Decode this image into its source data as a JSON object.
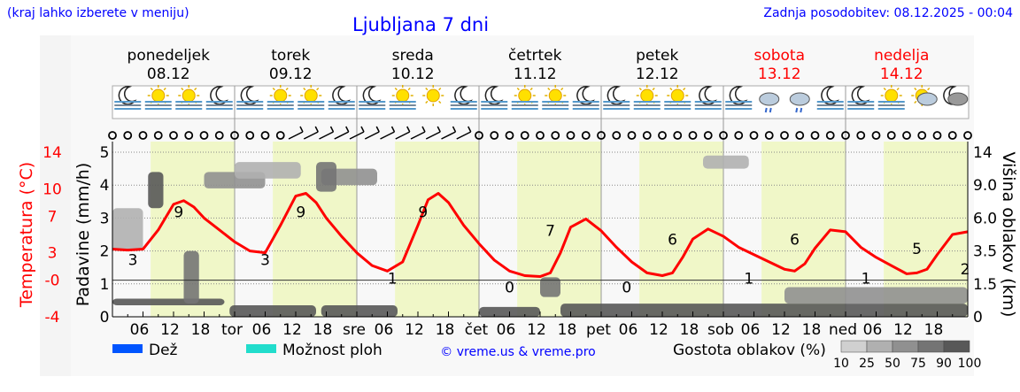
{
  "header": {
    "note": "(kraj lahko izberete v meniju)",
    "title": "Ljubljana 7 dni",
    "updated": "Zadnja posodobitev: 08.12.2025 - 00:04"
  },
  "colors": {
    "temperature": "#ff0000",
    "rain": "#0055ff",
    "shower": "#22ddcc",
    "day_band": "#f0f7c8",
    "link": "#0000ff",
    "weekend": "#ff0000"
  },
  "days": [
    {
      "name": "ponedeljek",
      "date": "08.12",
      "weekend": false
    },
    {
      "name": "torek",
      "date": "09.12",
      "weekend": false
    },
    {
      "name": "sreda",
      "date": "10.12",
      "weekend": false
    },
    {
      "name": "četrtek",
      "date": "11.12",
      "weekend": false
    },
    {
      "name": "petek",
      "date": "12.12",
      "weekend": false
    },
    {
      "name": "sobota",
      "date": "13.12",
      "weekend": true
    },
    {
      "name": "nedelja",
      "date": "14.12",
      "weekend": true
    }
  ],
  "icons": [
    "moon-fog",
    "sun-fog",
    "sun-fog",
    "moon-fog",
    "moon-fog",
    "sun-fog",
    "sun-fog",
    "moon-fog",
    "moon-fog",
    "sun-fog",
    "sun",
    "moon-fog",
    "moon-fog",
    "sun-fog",
    "sun-fog",
    "moon-fog",
    "moon-fog",
    "sun-fog",
    "sun-fog",
    "moon-fog",
    "moon-fog",
    "cloud-rain",
    "cloud-rain",
    "moon-fog",
    "moon-fog",
    "sun-fog",
    "sun-cloud",
    "moon-cloud"
  ],
  "chart_data": {
    "type": "line",
    "x_tick_labels": [
      "06",
      "12",
      "18",
      "tor",
      "06",
      "12",
      "18",
      "sre",
      "06",
      "12",
      "18",
      "čet",
      "06",
      "12",
      "18",
      "pet",
      "06",
      "12",
      "18",
      "sob",
      "06",
      "12",
      "18",
      "ned",
      "06",
      "12",
      "18"
    ],
    "left_axis_precip": {
      "label": "Padavine (mm/h)",
      "ticks": [
        "0",
        "1",
        "2",
        "3",
        "4",
        "5"
      ],
      "range": [
        0,
        5
      ]
    },
    "left_axis_temp": {
      "label": "Temperatura (°C)",
      "ticks": [
        "-4",
        "-0",
        "3",
        "7",
        "10",
        "14"
      ],
      "range": [
        -4,
        14
      ]
    },
    "right_axis": {
      "label": "Višina oblakov (km)",
      "ticks": [
        "0",
        "1.5",
        "3.5",
        "6.0",
        "9.0",
        "14"
      ]
    },
    "temperature": {
      "hours": [
        0,
        3,
        6,
        9,
        12,
        14,
        16,
        18,
        21,
        24,
        27,
        30,
        33,
        36,
        38,
        40,
        42,
        45,
        48,
        51,
        54,
        57,
        60,
        62,
        64,
        66,
        69,
        72,
        75,
        78,
        81,
        84,
        86,
        88,
        90,
        93,
        96,
        99,
        102,
        105,
        108,
        110,
        112,
        114,
        117,
        120,
        123,
        126,
        129,
        132,
        134,
        136,
        138,
        141,
        144,
        147,
        150,
        153,
        156,
        158,
        160,
        162,
        165,
        168
      ],
      "values": [
        3.4,
        3.3,
        3.4,
        5.5,
        8.3,
        8.7,
        8.0,
        6.8,
        5.5,
        4.2,
        3.2,
        3.0,
        6.0,
        9.2,
        9.5,
        8.5,
        6.8,
        4.8,
        3.0,
        1.6,
        1.0,
        2.0,
        6.0,
        8.8,
        9.5,
        8.5,
        6.0,
        4.0,
        2.2,
        1.0,
        0.5,
        0.4,
        0.8,
        3.0,
        5.8,
        6.7,
        5.4,
        3.6,
        2.0,
        0.8,
        0.5,
        0.8,
        2.5,
        4.5,
        5.6,
        4.8,
        3.6,
        2.8,
        2.0,
        1.2,
        1.0,
        1.8,
        3.5,
        5.5,
        5.3,
        3.6,
        2.5,
        1.6,
        0.7,
        0.8,
        1.2,
        2.8,
        5.0,
        5.3
      ]
    },
    "temperature_labels": [
      {
        "hour": 4,
        "text": "3"
      },
      {
        "hour": 13,
        "text": "9"
      },
      {
        "hour": 30,
        "text": "3"
      },
      {
        "hour": 37,
        "text": "9"
      },
      {
        "hour": 55,
        "text": "1"
      },
      {
        "hour": 61,
        "text": "9"
      },
      {
        "hour": 78,
        "text": "0"
      },
      {
        "hour": 86,
        "text": "7"
      },
      {
        "hour": 101,
        "text": "0"
      },
      {
        "hour": 110,
        "text": "6"
      },
      {
        "hour": 125,
        "text": "1"
      },
      {
        "hour": 134,
        "text": "6"
      },
      {
        "hour": 148,
        "text": "1"
      },
      {
        "hour": 158,
        "text": "5"
      },
      {
        "hour": 168,
        "text": "2"
      }
    ],
    "daylight_hours": [
      7.5,
      16.5
    ],
    "freezing_level_temp": 0,
    "wind_barb_hours": [
      36,
      39,
      42,
      45,
      48,
      51,
      54,
      57,
      60,
      63,
      66,
      69
    ],
    "calm_hours": [
      0,
      3,
      6,
      9,
      12,
      15,
      18,
      21,
      24,
      27,
      30,
      33,
      72,
      75,
      78,
      81,
      84,
      87,
      90,
      93,
      96,
      99,
      102,
      105,
      108,
      111,
      114,
      117,
      120,
      123,
      126,
      129,
      132,
      135,
      138,
      141,
      144,
      147,
      150,
      153,
      156,
      159,
      162,
      165,
      168
    ],
    "clouds": [
      {
        "h0": 0,
        "h1": 22,
        "mm0": 0.35,
        "mm1": 0.55,
        "density": 90
      },
      {
        "h0": 7,
        "h1": 10,
        "mm0": 3.3,
        "mm1": 4.4,
        "density": 90
      },
      {
        "h0": 0,
        "h1": 6,
        "mm0": 2.0,
        "mm1": 3.3,
        "density": 25
      },
      {
        "h0": 14,
        "h1": 17,
        "mm0": 0.4,
        "mm1": 2.0,
        "density": 75
      },
      {
        "h0": 18,
        "h1": 30,
        "mm0": 3.9,
        "mm1": 4.4,
        "density": 50
      },
      {
        "h0": 24,
        "h1": 37,
        "mm0": 4.2,
        "mm1": 4.7,
        "density": 25
      },
      {
        "h0": 23,
        "h1": 40,
        "mm0": 0,
        "mm1": 0.35,
        "density": 90
      },
      {
        "h0": 41,
        "h1": 52,
        "mm0": 4.0,
        "mm1": 4.5,
        "density": 50
      },
      {
        "h0": 41,
        "h1": 56,
        "mm0": 0,
        "mm1": 0.35,
        "density": 90
      },
      {
        "h0": 40,
        "h1": 44,
        "mm0": 3.8,
        "mm1": 4.7,
        "density": 75
      },
      {
        "h0": 72,
        "h1": 84,
        "mm0": 0,
        "mm1": 0.3,
        "density": 90
      },
      {
        "h0": 84,
        "h1": 88,
        "mm0": 0.6,
        "mm1": 1.2,
        "density": 75
      },
      {
        "h0": 88,
        "h1": 168,
        "mm0": 0,
        "mm1": 0.4,
        "density": 90
      },
      {
        "h0": 132,
        "h1": 168,
        "mm0": 0.4,
        "mm1": 0.9,
        "density": 50
      },
      {
        "h0": 116,
        "h1": 125,
        "mm0": 4.5,
        "mm1": 4.9,
        "density": 25
      }
    ],
    "legend": {
      "rain": "Dež",
      "shower": "Možnost ploh",
      "credit": "© vreme.us & vreme.pro",
      "cloud_density": "Gostota oblakov (%)",
      "cloud_scale": [
        "10",
        "25",
        "50",
        "75",
        "90",
        "100"
      ]
    }
  }
}
